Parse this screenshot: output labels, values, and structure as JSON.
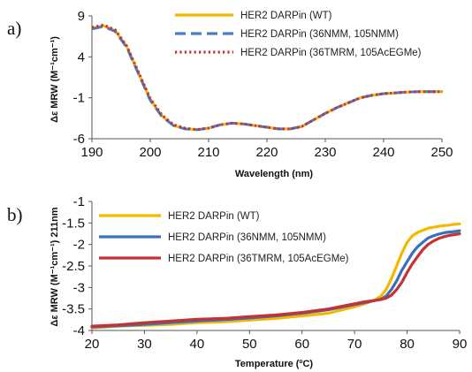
{
  "chart_data": [
    {
      "panel_label": "a)",
      "type": "line",
      "xlabel": "Wavelength (nm)",
      "ylabel": "Δε MRW (M⁻¹cm⁻¹)",
      "xlim": [
        190,
        250
      ],
      "ylim": [
        -6,
        9
      ],
      "xticks": [
        190,
        200,
        210,
        220,
        230,
        240,
        250
      ],
      "yticks": [
        9,
        4,
        -1,
        -6
      ],
      "grid": false,
      "legend_position": "top-right",
      "series": [
        {
          "name": "HER2 DARPin (WT)",
          "color": "#f5b800",
          "style": "solid",
          "x": [
            190,
            192,
            194,
            196,
            198,
            200,
            202,
            204,
            206,
            208,
            210,
            212,
            214,
            216,
            218,
            220,
            222,
            224,
            226,
            228,
            230,
            232,
            234,
            236,
            238,
            240,
            242,
            244,
            246,
            248,
            250
          ],
          "y": [
            7.5,
            7.8,
            7.2,
            5.2,
            2.0,
            -1.2,
            -3.2,
            -4.4,
            -4.8,
            -4.9,
            -4.7,
            -4.3,
            -4.1,
            -4.2,
            -4.4,
            -4.6,
            -4.8,
            -4.8,
            -4.5,
            -3.7,
            -2.9,
            -2.2,
            -1.6,
            -1.0,
            -0.7,
            -0.5,
            -0.4,
            -0.3,
            -0.25,
            -0.25,
            -0.25
          ]
        },
        {
          "name": "HER2 DARPin (36NMM, 105NMM)",
          "color": "#4a7cc4",
          "style": "dashed",
          "x": [
            190,
            192,
            194,
            196,
            198,
            200,
            202,
            204,
            206,
            208,
            210,
            212,
            214,
            216,
            218,
            220,
            222,
            224,
            226,
            228,
            230,
            232,
            234,
            236,
            238,
            240,
            242,
            244,
            246,
            248,
            250
          ],
          "y": [
            7.4,
            7.7,
            7.1,
            5.1,
            1.9,
            -1.3,
            -3.3,
            -4.4,
            -4.8,
            -4.9,
            -4.7,
            -4.3,
            -4.1,
            -4.2,
            -4.4,
            -4.6,
            -4.8,
            -4.8,
            -4.5,
            -3.7,
            -2.9,
            -2.2,
            -1.6,
            -1.0,
            -0.7,
            -0.5,
            -0.4,
            -0.3,
            -0.25,
            -0.25,
            -0.25
          ]
        },
        {
          "name": "HER2 DARPin (36TMRM, 105AcEGMe)",
          "color": "#d42a2a",
          "style": "dotted",
          "x": [
            190,
            192,
            194,
            196,
            198,
            200,
            202,
            204,
            206,
            208,
            210,
            212,
            214,
            216,
            218,
            220,
            222,
            224,
            226,
            228,
            230,
            232,
            234,
            236,
            238,
            240,
            242,
            244,
            246,
            248,
            250
          ],
          "y": [
            7.6,
            7.9,
            7.3,
            5.3,
            2.1,
            -1.1,
            -3.1,
            -4.3,
            -4.7,
            -4.9,
            -4.7,
            -4.3,
            -4.1,
            -4.2,
            -4.4,
            -4.6,
            -4.8,
            -4.8,
            -4.5,
            -3.7,
            -2.9,
            -2.2,
            -1.6,
            -1.0,
            -0.7,
            -0.5,
            -0.4,
            -0.3,
            -0.25,
            -0.25,
            -0.25
          ]
        }
      ]
    },
    {
      "panel_label": "b)",
      "type": "line",
      "xlabel": "Temperature (ºC)",
      "ylabel": "Δε MRW (M⁻¹cm⁻¹)   211nm",
      "xlim": [
        20,
        90
      ],
      "ylim": [
        -4,
        -1
      ],
      "xticks": [
        20,
        30,
        40,
        50,
        60,
        70,
        80,
        90
      ],
      "yticks": [
        -1,
        -1.5,
        -2,
        -2.5,
        -3,
        -3.5,
        -4
      ],
      "grid": false,
      "legend_position": "top-left",
      "series": [
        {
          "name": "HER2 DARPin (WT)",
          "color": "#f5b800",
          "style": "solid",
          "x": [
            20,
            25,
            30,
            35,
            40,
            45,
            50,
            55,
            60,
            65,
            70,
            72,
            74,
            75,
            76,
            77,
            78,
            79,
            80,
            81,
            82,
            83,
            84,
            85,
            86,
            87,
            88,
            89,
            90
          ],
          "y": [
            -3.94,
            -3.9,
            -3.88,
            -3.86,
            -3.82,
            -3.8,
            -3.76,
            -3.72,
            -3.66,
            -3.6,
            -3.45,
            -3.38,
            -3.28,
            -3.2,
            -3.05,
            -2.8,
            -2.5,
            -2.2,
            -1.95,
            -1.8,
            -1.72,
            -1.67,
            -1.62,
            -1.6,
            -1.58,
            -1.56,
            -1.55,
            -1.53,
            -1.52
          ]
        },
        {
          "name": "HER2 DARPin (36NMM, 105NMM)",
          "color": "#3a6fbf",
          "style": "solid",
          "x": [
            20,
            25,
            30,
            35,
            40,
            45,
            50,
            55,
            60,
            65,
            70,
            72,
            74,
            75,
            76,
            77,
            78,
            79,
            80,
            81,
            82,
            83,
            84,
            85,
            86,
            87,
            88,
            89,
            90
          ],
          "y": [
            -3.92,
            -3.89,
            -3.86,
            -3.82,
            -3.78,
            -3.75,
            -3.71,
            -3.66,
            -3.6,
            -3.52,
            -3.4,
            -3.35,
            -3.3,
            -3.27,
            -3.2,
            -3.05,
            -2.85,
            -2.6,
            -2.4,
            -2.2,
            -2.05,
            -1.95,
            -1.85,
            -1.8,
            -1.76,
            -1.73,
            -1.71,
            -1.7,
            -1.68
          ]
        },
        {
          "name": "HER2 DARPin (36TMRM, 105AcEGMe)",
          "color": "#c63232",
          "style": "solid",
          "x": [
            20,
            25,
            30,
            35,
            40,
            45,
            50,
            55,
            60,
            65,
            70,
            72,
            74,
            75,
            76,
            77,
            78,
            79,
            80,
            81,
            82,
            83,
            84,
            85,
            86,
            87,
            88,
            89,
            90
          ],
          "y": [
            -3.9,
            -3.87,
            -3.82,
            -3.78,
            -3.74,
            -3.72,
            -3.68,
            -3.64,
            -3.58,
            -3.5,
            -3.38,
            -3.33,
            -3.3,
            -3.28,
            -3.25,
            -3.18,
            -3.05,
            -2.88,
            -2.65,
            -2.45,
            -2.28,
            -2.12,
            -2.0,
            -1.92,
            -1.86,
            -1.82,
            -1.79,
            -1.77,
            -1.75
          ]
        }
      ]
    }
  ]
}
